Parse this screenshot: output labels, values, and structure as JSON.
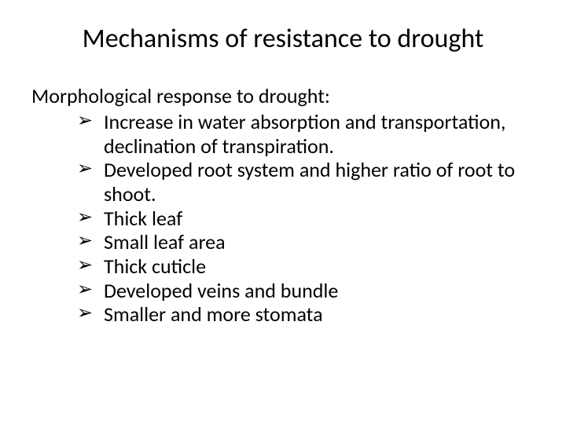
{
  "title": "Mechanisms of resistance to drought",
  "subheading": "Morphological response to drought:",
  "bullets": [
    "Increase in water absorption and transportation, declination of transpiration.",
    "Developed root system and higher ratio of root to shoot.",
    "Thick leaf",
    "Small leaf area",
    "Thick cuticle",
    "Developed veins and bundle",
    "Smaller and more stomata"
  ],
  "colors": {
    "background": "#ffffff",
    "text": "#000000"
  },
  "typography": {
    "title_fontsize": 34,
    "body_fontsize": 26,
    "font_family": "Calibri"
  }
}
